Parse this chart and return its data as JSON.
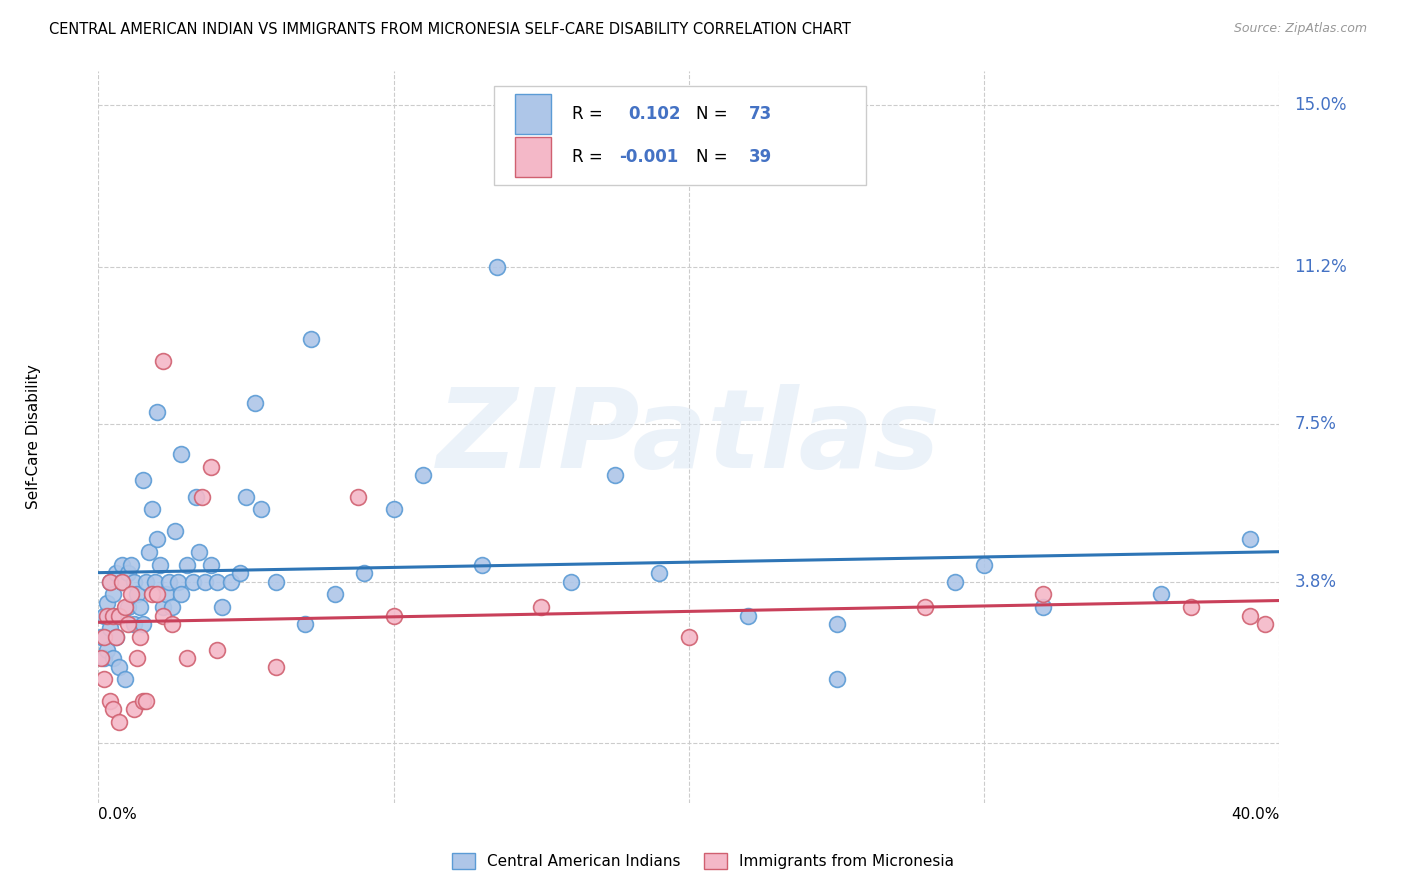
{
  "title": "CENTRAL AMERICAN INDIAN VS IMMIGRANTS FROM MICRONESIA SELF-CARE DISABILITY CORRELATION CHART",
  "source": "Source: ZipAtlas.com",
  "ylabel": "Self-Care Disability",
  "xmin": 0.0,
  "xmax": 0.4,
  "ymin": -0.014,
  "ymax": 0.158,
  "yticks": [
    0.0,
    0.038,
    0.075,
    0.112,
    0.15
  ],
  "ytick_labels": [
    "",
    "3.8%",
    "7.5%",
    "11.2%",
    "15.0%"
  ],
  "blue_color": "#aec6e8",
  "blue_edge_color": "#5b9bd5",
  "pink_color": "#f4b8c8",
  "pink_edge_color": "#d06070",
  "blue_line_color": "#2e75b6",
  "pink_line_color": "#c9405a",
  "grid_color": "#cccccc",
  "right_tick_color": "#4472c4",
  "bottom_legend_blue": "Central American Indians",
  "bottom_legend_pink": "Immigrants from Micronesia",
  "watermark": "ZIPatlas",
  "blue_N": 73,
  "pink_N": 39,
  "blue_R": 0.102,
  "pink_R": -0.001,
  "blue_x": [
    0.001,
    0.002,
    0.002,
    0.003,
    0.003,
    0.004,
    0.004,
    0.005,
    0.005,
    0.006,
    0.006,
    0.007,
    0.007,
    0.008,
    0.008,
    0.009,
    0.01,
    0.01,
    0.011,
    0.012,
    0.012,
    0.013,
    0.014,
    0.015,
    0.016,
    0.017,
    0.018,
    0.019,
    0.02,
    0.021,
    0.022,
    0.023,
    0.024,
    0.025,
    0.026,
    0.027,
    0.028,
    0.03,
    0.032,
    0.034,
    0.036,
    0.038,
    0.04,
    0.042,
    0.045,
    0.048,
    0.05,
    0.055,
    0.06,
    0.07,
    0.08,
    0.09,
    0.1,
    0.11,
    0.13,
    0.16,
    0.19,
    0.22,
    0.25,
    0.29,
    0.32,
    0.36,
    0.39,
    0.02,
    0.028,
    0.033,
    0.072,
    0.135,
    0.053,
    0.3,
    0.175,
    0.25,
    0.015
  ],
  "blue_y": [
    0.025,
    0.03,
    0.02,
    0.033,
    0.022,
    0.027,
    0.038,
    0.02,
    0.035,
    0.025,
    0.04,
    0.03,
    0.018,
    0.038,
    0.042,
    0.015,
    0.04,
    0.032,
    0.042,
    0.038,
    0.028,
    0.035,
    0.032,
    0.028,
    0.038,
    0.045,
    0.055,
    0.038,
    0.048,
    0.042,
    0.032,
    0.035,
    0.038,
    0.032,
    0.05,
    0.038,
    0.035,
    0.042,
    0.038,
    0.045,
    0.038,
    0.042,
    0.038,
    0.032,
    0.038,
    0.04,
    0.058,
    0.055,
    0.038,
    0.028,
    0.035,
    0.04,
    0.055,
    0.063,
    0.042,
    0.038,
    0.04,
    0.03,
    0.028,
    0.038,
    0.032,
    0.035,
    0.048,
    0.078,
    0.068,
    0.058,
    0.095,
    0.112,
    0.08,
    0.042,
    0.063,
    0.015,
    0.062
  ],
  "pink_x": [
    0.001,
    0.002,
    0.002,
    0.003,
    0.004,
    0.004,
    0.005,
    0.005,
    0.006,
    0.007,
    0.007,
    0.008,
    0.009,
    0.01,
    0.011,
    0.012,
    0.013,
    0.014,
    0.015,
    0.016,
    0.018,
    0.02,
    0.022,
    0.025,
    0.03,
    0.035,
    0.04,
    0.06,
    0.022,
    0.038,
    0.1,
    0.15,
    0.2,
    0.28,
    0.32,
    0.37,
    0.39,
    0.395,
    0.088
  ],
  "pink_y": [
    0.02,
    0.025,
    0.015,
    0.03,
    0.038,
    0.01,
    0.03,
    0.008,
    0.025,
    0.03,
    0.005,
    0.038,
    0.032,
    0.028,
    0.035,
    0.008,
    0.02,
    0.025,
    0.01,
    0.01,
    0.035,
    0.035,
    0.03,
    0.028,
    0.02,
    0.058,
    0.022,
    0.018,
    0.09,
    0.065,
    0.03,
    0.032,
    0.025,
    0.032,
    0.035,
    0.032,
    0.03,
    0.028,
    0.058
  ]
}
